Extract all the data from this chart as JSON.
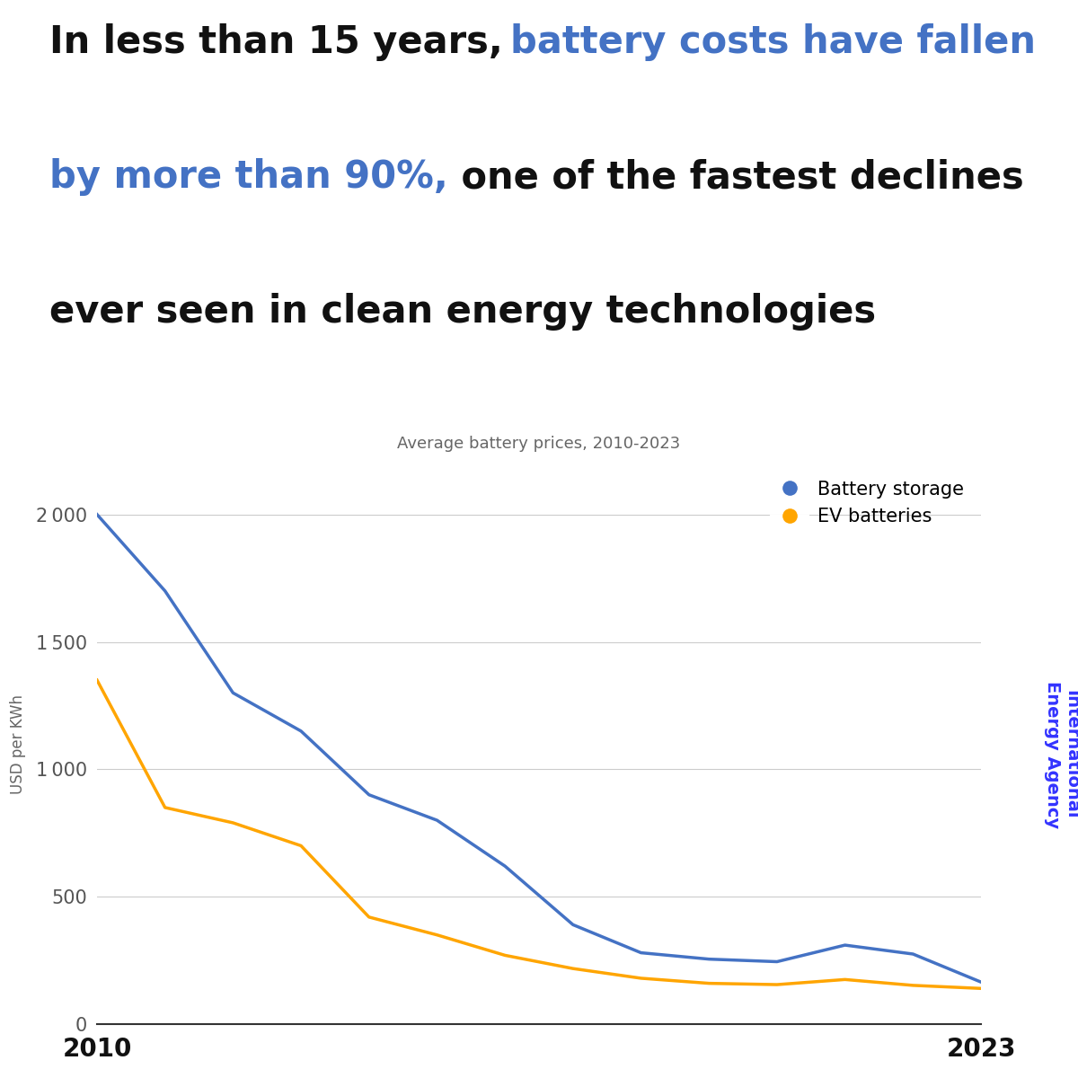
{
  "years": [
    2010,
    2011,
    2012,
    2013,
    2014,
    2015,
    2016,
    2017,
    2018,
    2019,
    2020,
    2021,
    2022,
    2023
  ],
  "battery_storage": [
    2000,
    1700,
    1300,
    1150,
    900,
    800,
    620,
    390,
    280,
    255,
    245,
    310,
    275,
    165
  ],
  "ev_batteries": [
    1350,
    850,
    790,
    700,
    420,
    350,
    270,
    218,
    180,
    160,
    155,
    175,
    152,
    140
  ],
  "battery_storage_color": "#4472C4",
  "ev_batteries_color": "#FFA500",
  "subtitle": "Average battery prices, 2010-2023",
  "ylabel": "USD per KWh",
  "legend_battery_storage": "Battery storage",
  "legend_ev_batteries": "EV batteries",
  "watermark_color": "#3333FF",
  "ylim": [
    0,
    2200
  ],
  "yticks": [
    0,
    500,
    1000,
    1500,
    2000
  ],
  "xlim": [
    2010,
    2023
  ],
  "bg_color": "#FFFFFF",
  "grid_color": "#CCCCCC",
  "title_fs": 30,
  "subtitle_fs": 13,
  "ylabel_fs": 12,
  "legend_fs": 15,
  "watermark_fs": 14,
  "xtick_labels": [
    "2010",
    "2023"
  ]
}
